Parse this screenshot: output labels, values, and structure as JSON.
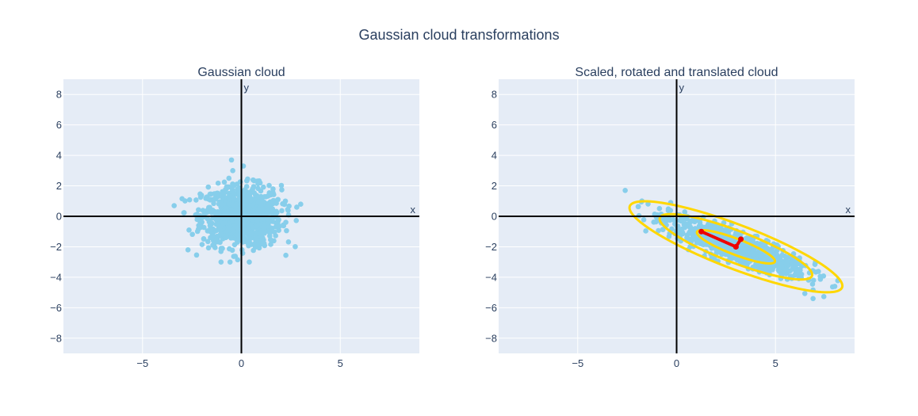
{
  "figure": {
    "title": "Gaussian cloud transformations"
  },
  "chart_data": [
    {
      "type": "scatter",
      "title": "Gaussian cloud",
      "xlabel": "x",
      "ylabel": "y",
      "xlim": [
        -9,
        9
      ],
      "ylim": [
        -9,
        9
      ],
      "xticks": [
        -5,
        0,
        5
      ],
      "yticks": [
        -8,
        -6,
        -4,
        -2,
        0,
        2,
        4,
        6,
        8
      ],
      "grid": true,
      "legend": "none",
      "colors": {
        "points": "#87ceeb",
        "background": "#e5ecf6",
        "axes": "#000000"
      },
      "cloud": {
        "n": 900,
        "mean": [
          0,
          0
        ],
        "std": [
          1.0,
          1.0
        ],
        "clip": [
          -3,
          3
        ]
      },
      "extra_points": [
        [
          -3.4,
          0.7
        ],
        [
          -0.5,
          3.7
        ],
        [
          0.1,
          3.3
        ],
        [
          2.8,
          0.6
        ],
        [
          -2.7,
          -2.2
        ],
        [
          0.4,
          -3.0
        ]
      ]
    },
    {
      "type": "scatter",
      "title": "Scaled, rotated and translated cloud",
      "xlabel": "x",
      "ylabel": "y",
      "xlim": [
        -9,
        9
      ],
      "ylim": [
        -9,
        9
      ],
      "xticks": [
        -5,
        0,
        5
      ],
      "yticks": [
        -8,
        -6,
        -4,
        -2,
        0,
        2,
        4,
        6,
        8
      ],
      "grid": true,
      "legend": "none",
      "colors": {
        "points": "#87ceeb",
        "background": "#e5ecf6",
        "axes": "#000000",
        "ellipses": "#ffd700",
        "vectors": "#ee0000"
      },
      "transform": {
        "mean": [
          3,
          -2
        ],
        "scale": [
          2.0,
          0.45
        ],
        "angle_deg": -27
      },
      "confidence_ellipses": [
        {
          "center": [
            3,
            -2
          ],
          "semi_axes": [
            2.2,
            0.5
          ],
          "angle_deg": -27
        },
        {
          "center": [
            3,
            -2
          ],
          "semi_axes": [
            4.3,
            1.0
          ],
          "angle_deg": -27
        },
        {
          "center": [
            3,
            -2
          ],
          "semi_axes": [
            6.0,
            1.38
          ],
          "angle_deg": -27
        }
      ],
      "principal_axes": [
        {
          "from": [
            3,
            -2
          ],
          "to": [
            1.25,
            -1.0
          ]
        },
        {
          "from": [
            3,
            -2
          ],
          "to": [
            3.25,
            -1.5
          ]
        }
      ],
      "extra_points": [
        [
          -2.6,
          1.7
        ],
        [
          -0.3,
          0.9
        ],
        [
          6.9,
          -5.4
        ],
        [
          8.0,
          -4.6
        ]
      ]
    }
  ]
}
